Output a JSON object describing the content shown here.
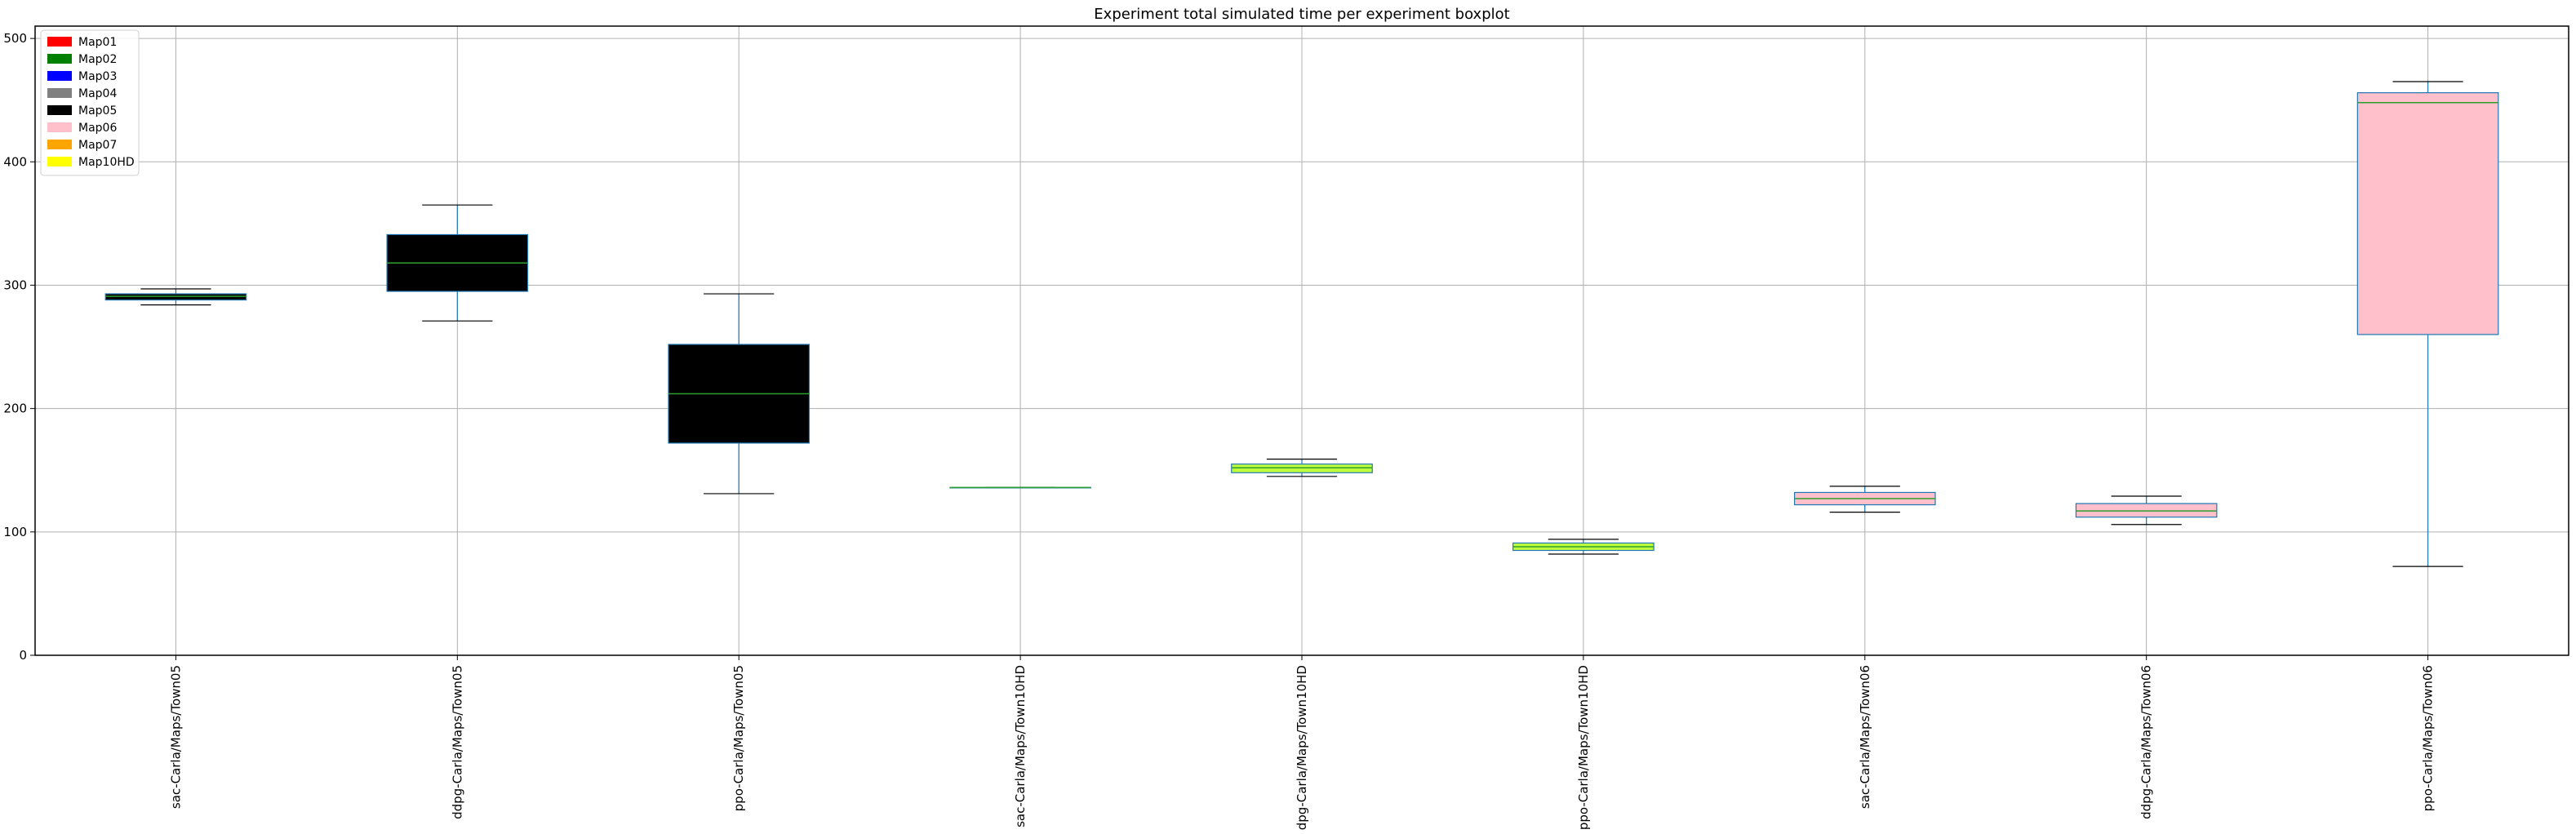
{
  "chart_data": {
    "type": "boxplot",
    "title": "Experiment total simulated time per experiment boxplot",
    "xlabel": "",
    "ylabel": "",
    "ylim": [
      0,
      510
    ],
    "yticks": [
      0,
      100,
      200,
      300,
      400,
      500
    ],
    "grid": true,
    "legend_position": "top-left",
    "legend": [
      {
        "label": "Map01",
        "color": "#ff0000"
      },
      {
        "label": "Map02",
        "color": "#008000"
      },
      {
        "label": "Map03",
        "color": "#0000ff"
      },
      {
        "label": "Map04",
        "color": "#808080"
      },
      {
        "label": "Map05",
        "color": "#000000"
      },
      {
        "label": "Map06",
        "color": "#ffc0cb"
      },
      {
        "label": "Map07",
        "color": "#ffa500"
      },
      {
        "label": "Map10HD",
        "color": "#ffff00"
      }
    ],
    "categories": [
      "sac-Carla/Maps/Town05",
      "ddpg-Carla/Maps/Town05",
      "ppo-Carla/Maps/Town05",
      "sac-Carla/Maps/Town10HD",
      "ddpg-Carla/Maps/Town10HD",
      "ppo-Carla/Maps/Town10HD",
      "sac-Carla/Maps/Town06",
      "ddpg-Carla/Maps/Town06",
      "ppo-Carla/Maps/Town06"
    ],
    "boxes": [
      {
        "whislo": 284,
        "q1": 288,
        "med": 291,
        "q3": 293,
        "whishi": 297,
        "fill": "#000000"
      },
      {
        "whislo": 271,
        "q1": 295,
        "med": 318,
        "q3": 341,
        "whishi": 365,
        "fill": "#000000"
      },
      {
        "whislo": 131,
        "q1": 172,
        "med": 212,
        "q3": 252,
        "whishi": 293,
        "fill": "#000000"
      },
      {
        "whislo": 136,
        "q1": 136,
        "med": 136,
        "q3": 136,
        "whishi": 136,
        "fill": "#c0ff3e"
      },
      {
        "whislo": 145,
        "q1": 148,
        "med": 152,
        "q3": 155,
        "whishi": 159,
        "fill": "#c0ff3e"
      },
      {
        "whislo": 82,
        "q1": 85,
        "med": 88,
        "q3": 91,
        "whishi": 94,
        "fill": "#c0ff3e"
      },
      {
        "whislo": 116,
        "q1": 122,
        "med": 127,
        "q3": 132,
        "whishi": 137,
        "fill": "#ffc0cb"
      },
      {
        "whislo": 106,
        "q1": 112,
        "med": 117,
        "q3": 123,
        "whishi": 129,
        "fill": "#ffc0cb"
      },
      {
        "whislo": 72,
        "q1": 260,
        "med": 448,
        "q3": 456,
        "whishi": 465,
        "fill": "#ffc0cb"
      }
    ],
    "colors": {
      "box_edge": "#1f77b4",
      "median": "#2ca02c",
      "whisker": "#1f77b4",
      "cap": "#000000",
      "grid": "#b0b0b0"
    }
  }
}
